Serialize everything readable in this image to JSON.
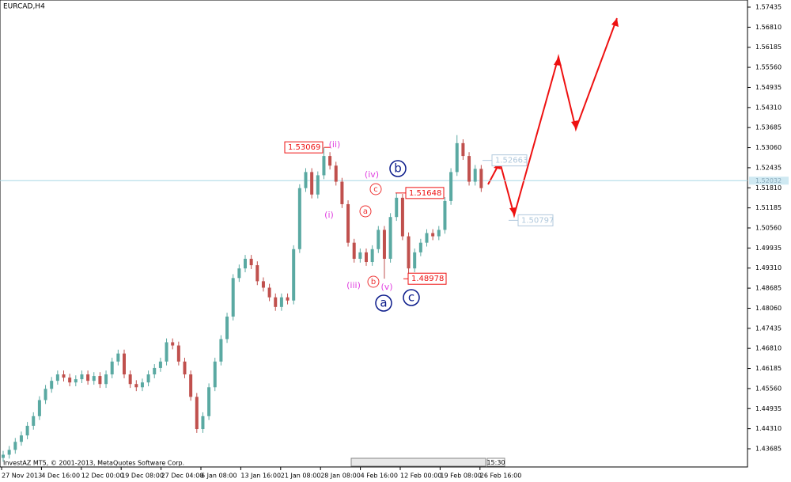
{
  "window_title": "EURCAD,H4",
  "footer": "InvestAZ MT5, © 2001-2013, MetaQuotes Software Corp.",
  "toolbar_time": "15:30",
  "chart_data": {
    "type": "candlestick",
    "up_color": "#5aa9a2",
    "down_color": "#c0504d",
    "ohlc": [
      [
        1.434,
        1.4362,
        1.4328,
        1.435
      ],
      [
        1.435,
        1.4377,
        1.4338,
        1.4365
      ],
      [
        1.4365,
        1.4402,
        1.4353,
        1.439
      ],
      [
        1.439,
        1.4422,
        1.4378,
        1.441
      ],
      [
        1.441,
        1.4452,
        1.4398,
        1.444
      ],
      [
        1.444,
        1.4482,
        1.4428,
        1.447
      ],
      [
        1.447,
        1.4532,
        1.4458,
        1.452
      ],
      [
        1.452,
        1.4567,
        1.4508,
        1.4555
      ],
      [
        1.4555,
        1.4592,
        1.4543,
        1.458
      ],
      [
        1.458,
        1.4612,
        1.4568,
        1.46
      ],
      [
        1.46,
        1.4612,
        1.4578,
        1.459
      ],
      [
        1.459,
        1.4602,
        1.4563,
        1.4575
      ],
      [
        1.4575,
        1.4597,
        1.4563,
        1.4585
      ],
      [
        1.4585,
        1.4612,
        1.4573,
        1.46
      ],
      [
        1.46,
        1.4612,
        1.4568,
        1.458
      ],
      [
        1.458,
        1.4607,
        1.4568,
        1.4595
      ],
      [
        1.4595,
        1.4607,
        1.4558,
        1.457
      ],
      [
        1.457,
        1.4612,
        1.4558,
        1.46
      ],
      [
        1.46,
        1.4652,
        1.4588,
        1.464
      ],
      [
        1.464,
        1.4677,
        1.4628,
        1.4665
      ],
      [
        1.4665,
        1.4677,
        1.4588,
        1.46
      ],
      [
        1.46,
        1.4612,
        1.4558,
        1.457
      ],
      [
        1.457,
        1.4582,
        1.4548,
        1.456
      ],
      [
        1.456,
        1.4587,
        1.4548,
        1.4575
      ],
      [
        1.4575,
        1.4612,
        1.4563,
        1.46
      ],
      [
        1.46,
        1.4632,
        1.4588,
        1.462
      ],
      [
        1.462,
        1.4652,
        1.4608,
        1.464
      ],
      [
        1.464,
        1.4712,
        1.4628,
        1.47
      ],
      [
        1.47,
        1.4712,
        1.4678,
        1.469
      ],
      [
        1.469,
        1.4702,
        1.4628,
        1.464
      ],
      [
        1.464,
        1.4652,
        1.4588,
        1.46
      ],
      [
        1.46,
        1.4612,
        1.4518,
        1.453
      ],
      [
        1.453,
        1.4542,
        1.4418,
        1.443
      ],
      [
        1.443,
        1.4482,
        1.4418,
        1.447
      ],
      [
        1.447,
        1.4572,
        1.4458,
        1.456
      ],
      [
        1.456,
        1.4652,
        1.4548,
        1.464
      ],
      [
        1.464,
        1.4722,
        1.4628,
        1.471
      ],
      [
        1.471,
        1.4792,
        1.4698,
        1.478
      ],
      [
        1.478,
        1.4912,
        1.4768,
        1.49
      ],
      [
        1.49,
        1.4942,
        1.4888,
        1.493
      ],
      [
        1.493,
        1.4972,
        1.4918,
        1.496
      ],
      [
        1.496,
        1.4972,
        1.4928,
        1.494
      ],
      [
        1.494,
        1.4952,
        1.4878,
        1.489
      ],
      [
        1.489,
        1.4902,
        1.4858,
        1.487
      ],
      [
        1.487,
        1.4882,
        1.4828,
        1.484
      ],
      [
        1.484,
        1.4852,
        1.4798,
        1.481
      ],
      [
        1.481,
        1.4852,
        1.4798,
        1.484
      ],
      [
        1.484,
        1.4852,
        1.4818,
        1.483
      ],
      [
        1.483,
        1.5002,
        1.4818,
        1.499
      ],
      [
        1.499,
        1.5192,
        1.4978,
        1.518
      ],
      [
        1.518,
        1.5242,
        1.5168,
        1.523
      ],
      [
        1.523,
        1.5242,
        1.5148,
        1.516
      ],
      [
        1.516,
        1.5232,
        1.5148,
        1.522
      ],
      [
        1.522,
        1.5307,
        1.5208,
        1.528
      ],
      [
        1.528,
        1.5292,
        1.5238,
        1.525
      ],
      [
        1.525,
        1.5262,
        1.5188,
        1.52
      ],
      [
        1.52,
        1.5212,
        1.5118,
        1.513
      ],
      [
        1.513,
        1.5142,
        1.4998,
        1.501
      ],
      [
        1.501,
        1.5022,
        1.4948,
        1.496
      ],
      [
        1.496,
        1.4992,
        1.4948,
        1.498
      ],
      [
        1.498,
        1.4992,
        1.4938,
        1.495
      ],
      [
        1.495,
        1.5002,
        1.4938,
        1.499
      ],
      [
        1.499,
        1.5062,
        1.4978,
        1.505
      ],
      [
        1.505,
        1.5062,
        1.4898,
        1.496
      ],
      [
        1.496,
        1.5102,
        1.4948,
        1.509
      ],
      [
        1.509,
        1.5165,
        1.5078,
        1.515
      ],
      [
        1.515,
        1.5162,
        1.5018,
        1.503
      ],
      [
        1.503,
        1.5042,
        1.4898,
        1.493
      ],
      [
        1.493,
        1.4992,
        1.4918,
        1.498
      ],
      [
        1.498,
        1.5022,
        1.4968,
        1.501
      ],
      [
        1.501,
        1.5052,
        1.4998,
        1.504
      ],
      [
        1.504,
        1.5052,
        1.5018,
        1.503
      ],
      [
        1.503,
        1.5062,
        1.5018,
        1.505
      ],
      [
        1.505,
        1.5152,
        1.5038,
        1.514
      ],
      [
        1.514,
        1.5242,
        1.5128,
        1.523
      ],
      [
        1.523,
        1.5345,
        1.5218,
        1.532
      ],
      [
        1.532,
        1.5332,
        1.5268,
        1.528
      ],
      [
        1.528,
        1.5292,
        1.5188,
        1.52
      ],
      [
        1.52,
        1.5252,
        1.5188,
        1.524
      ],
      [
        1.524,
        1.5252,
        1.5168,
        1.518
      ]
    ],
    "ylim": [
      1.43118,
      1.57657
    ],
    "yticks": [
      1.57435,
      {
        "value": 1.5681,
        "label": "1.56810"
      },
      1.56185,
      {
        "value": 1.5556,
        "label": "1.55560"
      },
      1.54935,
      {
        "value": 1.5431,
        "label": "1.54310"
      },
      1.53685,
      {
        "value": 1.5306,
        "label": "1.53060"
      },
      1.52435,
      {
        "value": 1.5181,
        "label": "1.51810"
      },
      1.51185,
      {
        "value": 1.5056,
        "label": "1.50560"
      },
      1.49935,
      {
        "value": 1.4931,
        "label": "1.49310"
      },
      1.48685,
      {
        "value": 1.4806,
        "label": "1.48060"
      },
      1.47435,
      {
        "value": 1.4681,
        "label": "1.46810"
      },
      1.46185,
      {
        "value": 1.4556,
        "label": "1.45560"
      },
      1.44935,
      {
        "value": 1.4431,
        "label": "1.44310"
      },
      1.43685
    ],
    "x_labels": [
      "27 Nov 2013",
      "4 Dec 16:00",
      "12 Dec 00:00",
      "19 Dec 08:00",
      "27 Dec 04:00",
      "6 Jan 08:00",
      "13 Jan 16:00",
      "21 Jan 08:00",
      "28 Jan 08:00",
      "4 Feb 16:00",
      "12 Feb 00:00",
      "19 Feb 08:00",
      "26 Feb 16:00"
    ],
    "current_price": 1.52032,
    "price_labels": [
      1.53069,
      1.51648,
      1.48978
    ],
    "target_labels": [
      1.52663,
      1.50797
    ],
    "wave_labels": {
      "intermediate": [
        "(ii)",
        "(i)",
        "(iv)",
        "(iii)",
        "(v)"
      ],
      "minor": [
        "a",
        "b",
        "c"
      ],
      "major": [
        "b",
        "a",
        "c"
      ]
    }
  }
}
